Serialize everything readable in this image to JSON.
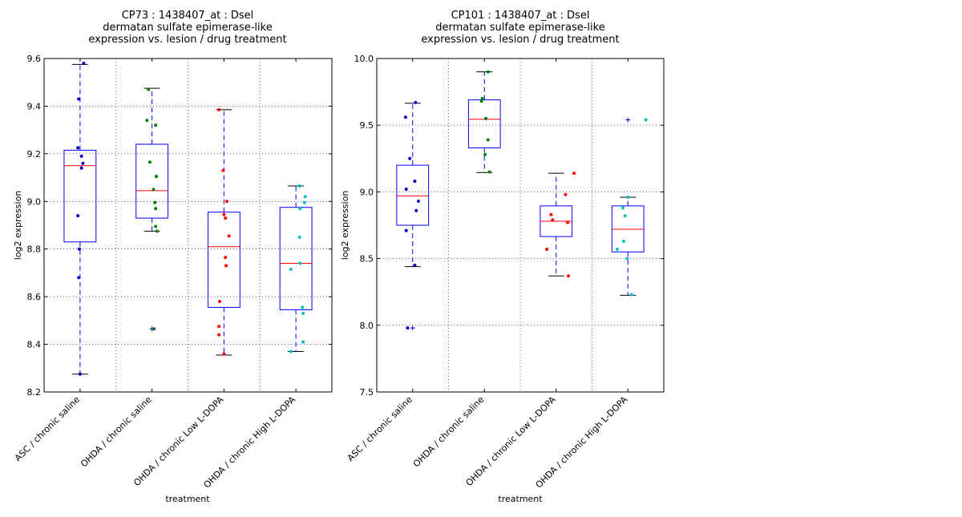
{
  "chart_data": [
    {
      "type": "box",
      "title": [
        "CP73 : 1438407_at : Dsel",
        "dermatan sulfate epimerase-like",
        "expression vs. lesion / drug treatment"
      ],
      "xlabel": "treatment",
      "ylabel": "log2 expression",
      "ylim": [
        8.2,
        9.6
      ],
      "yticks": [
        8.2,
        8.4,
        8.6,
        8.8,
        9.0,
        9.2,
        9.4,
        9.6
      ],
      "ytick_labels": [
        "8.2",
        "8.4",
        "8.6",
        "8.8",
        "9.0",
        "9.2",
        "9.4",
        "9.6"
      ],
      "grid": true,
      "categories": [
        "ASC / chronic saline",
        "OHDA / chronic saline",
        "OHDA / chronic Low L-DOPA",
        "OHDA / chronic High L-DOPA"
      ],
      "colors": [
        "#0000bf",
        "#007f00",
        "#ff0000",
        "#00bfbf"
      ],
      "boxes": [
        {
          "whislo": 8.275,
          "q1": 8.83,
          "med": 9.15,
          "q3": 9.215,
          "whishi": 9.575,
          "fliers": []
        },
        {
          "whislo": 8.875,
          "q1": 8.93,
          "med": 9.045,
          "q3": 9.24,
          "whishi": 9.475,
          "fliers": [
            8.465
          ]
        },
        {
          "whislo": 8.355,
          "q1": 8.555,
          "med": 8.81,
          "q3": 8.955,
          "whishi": 9.385,
          "fliers": []
        },
        {
          "whislo": 8.37,
          "q1": 8.545,
          "med": 8.74,
          "q3": 8.975,
          "whishi": 9.065,
          "fliers": []
        }
      ],
      "points": [
        [
          {
            "dx": 0.05,
            "y": 9.58
          },
          {
            "dx": -0.02,
            "y": 9.43
          },
          {
            "dx": -0.03,
            "y": 9.225
          },
          {
            "dx": 0.02,
            "y": 9.19
          },
          {
            "dx": 0.04,
            "y": 9.16
          },
          {
            "dx": 0.02,
            "y": 9.14
          },
          {
            "dx": -0.03,
            "y": 8.94
          },
          {
            "dx": -0.01,
            "y": 8.8
          },
          {
            "dx": -0.02,
            "y": 8.68
          },
          {
            "dx": 0.0,
            "y": 8.275
          }
        ],
        [
          {
            "dx": -0.05,
            "y": 9.47
          },
          {
            "dx": -0.07,
            "y": 9.34
          },
          {
            "dx": 0.05,
            "y": 9.32
          },
          {
            "dx": -0.03,
            "y": 9.165
          },
          {
            "dx": 0.06,
            "y": 9.105
          },
          {
            "dx": 0.02,
            "y": 9.05
          },
          {
            "dx": 0.04,
            "y": 8.995
          },
          {
            "dx": 0.05,
            "y": 8.97
          },
          {
            "dx": 0.05,
            "y": 8.895
          },
          {
            "dx": 0.07,
            "y": 8.875
          },
          {
            "dx": 0.03,
            "y": 8.465
          }
        ],
        [
          {
            "dx": -0.07,
            "y": 9.385
          },
          {
            "dx": -0.01,
            "y": 9.13
          },
          {
            "dx": 0.04,
            "y": 9.0
          },
          {
            "dx": 0.0,
            "y": 8.945
          },
          {
            "dx": 0.02,
            "y": 8.93
          },
          {
            "dx": 0.07,
            "y": 8.855
          },
          {
            "dx": 0.02,
            "y": 8.765
          },
          {
            "dx": 0.03,
            "y": 8.73
          },
          {
            "dx": -0.06,
            "y": 8.58
          },
          {
            "dx": -0.07,
            "y": 8.475
          },
          {
            "dx": -0.07,
            "y": 8.44
          },
          {
            "dx": 0.0,
            "y": 8.36
          }
        ],
        [
          {
            "dx": 0.05,
            "y": 9.065
          },
          {
            "dx": 0.13,
            "y": 9.02
          },
          {
            "dx": 0.12,
            "y": 8.995
          },
          {
            "dx": 0.06,
            "y": 8.97
          },
          {
            "dx": 0.05,
            "y": 8.85
          },
          {
            "dx": 0.06,
            "y": 8.74
          },
          {
            "dx": -0.07,
            "y": 8.715
          },
          {
            "dx": 0.09,
            "y": 8.555
          },
          {
            "dx": 0.1,
            "y": 8.53
          },
          {
            "dx": 0.1,
            "y": 8.41
          },
          {
            "dx": -0.07,
            "y": 8.37
          }
        ]
      ]
    },
    {
      "type": "box",
      "title": [
        "CP101 : 1438407_at : Dsel",
        "dermatan sulfate epimerase-like",
        "expression vs. lesion / drug treatment"
      ],
      "xlabel": "treatment",
      "ylabel": "log2 expression",
      "ylim": [
        7.5,
        10.0
      ],
      "yticks": [
        7.5,
        8.0,
        8.5,
        9.0,
        9.5,
        10.0
      ],
      "ytick_labels": [
        "7.5",
        "8.0",
        "8.5",
        "9.0",
        "9.5",
        "10.0"
      ],
      "grid": true,
      "categories": [
        "ASC / chronic saline",
        "OHDA / chronic saline",
        "OHDA / chronic Low L-DOPA",
        "OHDA / chronic High L-DOPA"
      ],
      "colors": [
        "#0000bf",
        "#007f00",
        "#ff0000",
        "#00bfbf"
      ],
      "boxes": [
        {
          "whislo": 8.44,
          "q1": 8.75,
          "med": 8.97,
          "q3": 9.2,
          "whishi": 9.665,
          "fliers": [
            7.98
          ]
        },
        {
          "whislo": 9.145,
          "q1": 9.33,
          "med": 9.545,
          "q3": 9.69,
          "whishi": 9.9,
          "fliers": []
        },
        {
          "whislo": 8.37,
          "q1": 8.665,
          "med": 8.78,
          "q3": 8.895,
          "whishi": 9.14,
          "fliers": []
        },
        {
          "whislo": 8.225,
          "q1": 8.55,
          "med": 8.72,
          "q3": 8.895,
          "whishi": 8.96,
          "fliers": [
            9.54
          ]
        }
      ],
      "points": [
        [
          {
            "dx": 0.04,
            "y": 9.67
          },
          {
            "dx": -0.1,
            "y": 9.56
          },
          {
            "dx": -0.04,
            "y": 9.25
          },
          {
            "dx": 0.03,
            "y": 9.08
          },
          {
            "dx": -0.09,
            "y": 9.02
          },
          {
            "dx": 0.08,
            "y": 8.93
          },
          {
            "dx": 0.05,
            "y": 8.86
          },
          {
            "dx": -0.09,
            "y": 8.71
          },
          {
            "dx": 0.03,
            "y": 8.45
          },
          {
            "dx": -0.07,
            "y": 7.98
          }
        ],
        [
          {
            "dx": 0.05,
            "y": 9.9
          },
          {
            "dx": -0.03,
            "y": 9.7
          },
          {
            "dx": -0.04,
            "y": 9.68
          },
          {
            "dx": 0.02,
            "y": 9.55
          },
          {
            "dx": 0.05,
            "y": 9.39
          },
          {
            "dx": 0.01,
            "y": 9.28
          },
          {
            "dx": 0.07,
            "y": 9.15
          }
        ],
        [
          {
            "dx": 0.25,
            "y": 9.14
          },
          {
            "dx": 0.13,
            "y": 8.98
          },
          {
            "dx": -0.07,
            "y": 8.83
          },
          {
            "dx": -0.05,
            "y": 8.79
          },
          {
            "dx": 0.16,
            "y": 8.77
          },
          {
            "dx": -0.13,
            "y": 8.57
          },
          {
            "dx": 0.17,
            "y": 8.37
          }
        ],
        [
          {
            "dx": 0.25,
            "y": 9.54
          },
          {
            "dx": 0.0,
            "y": 8.96
          },
          {
            "dx": -0.07,
            "y": 8.88
          },
          {
            "dx": -0.04,
            "y": 8.82
          },
          {
            "dx": -0.06,
            "y": 8.63
          },
          {
            "dx": -0.15,
            "y": 8.57
          },
          {
            "dx": -0.01,
            "y": 8.5
          },
          {
            "dx": 0.05,
            "y": 8.23
          }
        ]
      ]
    }
  ]
}
